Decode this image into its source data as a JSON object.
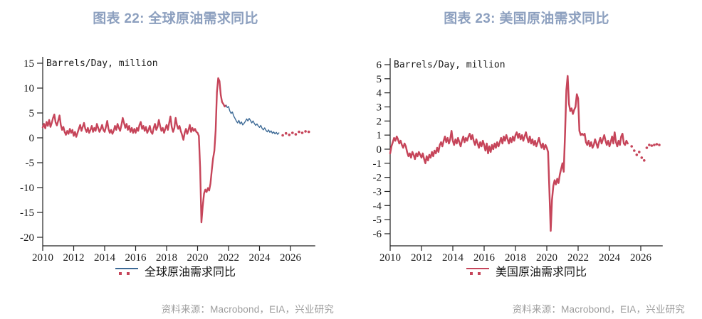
{
  "colors": {
    "red": "#c6455a",
    "blue": "#3d6a96",
    "title": "#8da0bf",
    "axis": "#222222",
    "tick_label": "#1a1a1a",
    "source_text": "#9c9c9c"
  },
  "chart_data": [
    {
      "type": "line",
      "title": "图表 22: 全球原油需求同比",
      "ylabel": "Barrels/Day, million",
      "legend_label": "全球原油需求同比",
      "source": "资料来源：Macrobond，EIA，兴业研究",
      "ylim": [
        -20,
        15
      ],
      "yticks": [
        15,
        10,
        5,
        0,
        -5,
        -10,
        -15,
        -20
      ],
      "xticks": [
        2010,
        2012,
        2014,
        2016,
        2018,
        2020,
        2022,
        2024,
        2026
      ],
      "xlim": [
        2010,
        2027.6
      ],
      "grid": false,
      "legend_position": "bottom",
      "legend_marker": {
        "line_color": "#3d6a96",
        "dot_color": "#c6455a"
      },
      "series": [
        {
          "name": "history-solid-red",
          "type": "line",
          "color": "#c6455a",
          "width": 2.4,
          "x_start": 2010.0,
          "x_step": 0.083333,
          "values": [
            2.1,
            2.8,
            1.9,
            3.2,
            2.4,
            3.6,
            2.2,
            3.0,
            4.0,
            4.7,
            3.1,
            2.5,
            3.4,
            4.5,
            2.6,
            1.6,
            2.2,
            1.2,
            0.6,
            1.4,
            0.8,
            1.8,
            1.0,
            1.6,
            0.4,
            1.2,
            0.2,
            1.0,
            1.8,
            2.6,
            1.4,
            2.2,
            3.0,
            1.8,
            1.2,
            2.0,
            1.0,
            1.6,
            2.4,
            1.2,
            2.0,
            1.4,
            2.8,
            2.0,
            1.2,
            1.8,
            2.6,
            1.6,
            1.2,
            2.2,
            3.4,
            1.8,
            1.0,
            1.6,
            0.8,
            1.4,
            2.4,
            1.6,
            2.8,
            2.0,
            1.4,
            2.6,
            4.0,
            3.0,
            2.0,
            2.8,
            1.6,
            2.4,
            1.2,
            2.0,
            1.0,
            1.8,
            1.0,
            2.0,
            1.4,
            2.6,
            3.2,
            1.8,
            2.4,
            1.4,
            2.2,
            1.0,
            1.6,
            2.4,
            1.2,
            0.8,
            2.0,
            2.8,
            1.6,
            2.2,
            3.6,
            2.4,
            1.4,
            2.0,
            1.0,
            1.8,
            2.6,
            1.6,
            3.0,
            4.3,
            2.2,
            1.2,
            2.0,
            4.0,
            2.6,
            1.8,
            2.4,
            1.4,
            0.6,
            -0.4,
            1.0,
            1.8,
            0.8,
            1.6,
            2.6,
            1.2,
            2.0,
            1.4,
            1.8,
            1.2,
            1.0,
            0.4,
            -6.0,
            -17.0,
            -13.8,
            -11.2,
            -10.4,
            -10.9,
            -10.1,
            -10.6,
            -9.2,
            -6.6,
            -4.2,
            -2.6,
            1.5,
            9.2,
            12.0,
            11.4,
            8.6,
            7.2,
            6.8,
            6.3,
            6.5
          ]
        },
        {
          "name": "projection-solid-blue",
          "type": "line",
          "color": "#3d6a96",
          "width": 1.4,
          "x_start": 2021.8333,
          "x_step": 0.083333,
          "values": [
            6.5,
            6.1,
            6.3,
            5.4,
            4.9,
            5.2,
            4.4,
            3.9,
            3.4,
            3.0,
            3.5,
            2.8,
            3.2,
            2.6,
            2.9,
            3.3,
            3.8,
            3.4,
            3.9,
            3.5,
            3.0,
            3.4,
            2.9,
            2.5,
            2.8,
            2.4,
            2.1,
            2.5,
            1.9,
            1.6,
            2.0,
            1.5,
            1.2,
            1.6,
            1.1,
            1.4,
            0.9,
            1.2,
            0.8,
            1.1,
            0.7,
            1.0
          ]
        },
        {
          "name": "forecast-dots-red",
          "type": "dots",
          "color": "#c6455a",
          "width": 1.8,
          "x_start": 2025.5,
          "x_step": 0.21,
          "values": [
            0.5,
            0.9,
            0.6,
            1.0,
            0.7,
            1.2,
            1.0,
            1.3,
            1.2
          ]
        }
      ]
    },
    {
      "type": "line",
      "title": "图表 23: 美国原油需求同比",
      "ylabel": "Barrels/Day, million",
      "legend_label": "美国原油需求同比",
      "source": "资料来源：Macrobond，EIA，兴业研究",
      "ylim": [
        -6,
        6
      ],
      "yticks": [
        6,
        5,
        4,
        3,
        2,
        1,
        0,
        -1,
        -2,
        -3,
        -4,
        -5,
        -6
      ],
      "xticks": [
        2010,
        2012,
        2014,
        2016,
        2018,
        2020,
        2022,
        2024,
        2026
      ],
      "xlim": [
        2010,
        2027.4
      ],
      "grid": false,
      "legend_position": "bottom",
      "legend_marker": {
        "line_color": "#c6455a",
        "dot_color": "#c6455a"
      },
      "series": [
        {
          "name": "history-solid-red",
          "type": "line",
          "color": "#c6455a",
          "width": 2.5,
          "x_start": 2010.0,
          "x_step": 0.083333,
          "values": [
            -0.3,
            0.2,
            0.5,
            0.8,
            0.6,
            0.9,
            0.7,
            0.4,
            0.6,
            0.3,
            0.1,
            0.4,
            0.2,
            -0.2,
            -0.5,
            -0.3,
            -0.6,
            -0.2,
            -0.4,
            -0.7,
            -0.3,
            -0.5,
            -0.2,
            -0.4,
            -0.6,
            -0.3,
            -0.7,
            -1.0,
            -0.5,
            -0.8,
            -0.4,
            -0.6,
            -0.2,
            -0.5,
            -0.1,
            -0.3,
            0.1,
            -0.2,
            0.3,
            0.5,
            0.2,
            0.6,
            0.9,
            0.5,
            0.8,
            0.4,
            0.7,
            1.3,
            0.6,
            0.3,
            0.7,
            0.4,
            0.8,
            0.5,
            0.2,
            0.6,
            0.9,
            0.5,
            0.8,
            0.6,
            0.9,
            1.1,
            0.7,
            1.0,
            0.6,
            0.3,
            0.7,
            0.4,
            0.1,
            0.5,
            0.2,
            0.6,
            0.3,
            -0.1,
            0.4,
            -0.3,
            0.2,
            -0.2,
            0.3,
            0.0,
            0.4,
            0.1,
            0.5,
            0.2,
            0.5,
            0.8,
            0.4,
            0.9,
            0.6,
            1.0,
            0.7,
            0.4,
            0.8,
            0.5,
            0.9,
            0.6,
            1.0,
            1.2,
            0.8,
            1.1,
            0.7,
            1.0,
            0.6,
            0.9,
            1.2,
            0.8,
            0.5,
            0.9,
            0.4,
            0.7,
            0.3,
            0.6,
            0.2,
            0.5,
            0.8,
            0.4,
            0.1,
            0.4,
            0.0,
            0.3,
            0.1,
            -0.2,
            -3.0,
            -5.8,
            -3.6,
            -2.6,
            -2.2,
            -2.5,
            -2.1,
            -2.4,
            -1.8,
            -1.4,
            -1.0,
            -1.6,
            1.2,
            4.2,
            5.2,
            3.2,
            2.7,
            2.9,
            2.5,
            2.8,
            3.0,
            3.9,
            3.6,
            1.3,
            1.0,
            1.1,
            1.0,
            1.1,
            0.5,
            0.3,
            0.6,
            0.2,
            0.5,
            0.1,
            0.3,
            0.7,
            0.4,
            0.1,
            0.5,
            0.8,
            0.4,
            0.7,
            1.0,
            0.6,
            0.3,
            0.6,
            0.2,
            0.5,
            0.9,
            0.4,
            1.2,
            0.5,
            0.2,
            0.6,
            0.3,
            0.9,
            1.1,
            0.4,
            0.3,
            0.6,
            0.4
          ]
        },
        {
          "name": "forecast-dots-red",
          "type": "dots",
          "color": "#c6455a",
          "width": 1.8,
          "x_start": 2025.42,
          "x_step": 0.16,
          "values": [
            0.2,
            -0.1,
            -0.4,
            -0.2,
            -0.6,
            -0.8,
            0.1,
            0.3,
            0.25,
            0.3,
            0.35,
            0.3
          ]
        }
      ]
    }
  ]
}
